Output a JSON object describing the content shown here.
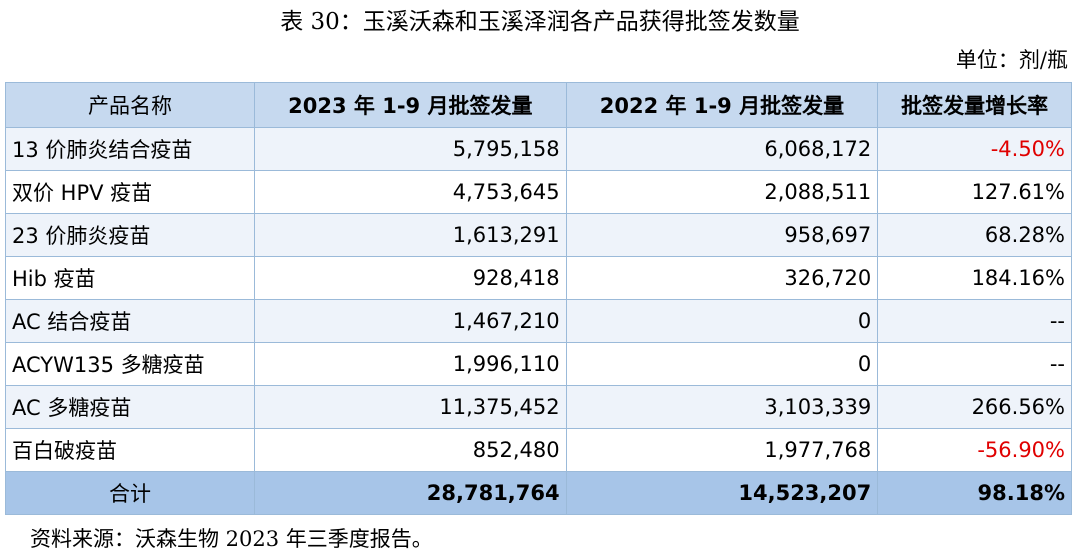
{
  "header": {
    "title": "表 30：玉溪沃森和玉溪泽润各产品获得批签发数量",
    "unit": "单位：剂/瓶"
  },
  "table": {
    "columns": [
      "产品名称",
      "2023 年 1-9 月批签发量",
      "2022 年 1-9 月批签发量",
      "批签发量增长率"
    ],
    "rows": [
      [
        "13 价肺炎结合疫苗",
        "5,795,158",
        "6,068,172",
        "-4.50%"
      ],
      [
        "双价 HPV 疫苗",
        "4,753,645",
        "2,088,511",
        "127.61%"
      ],
      [
        "23 价肺炎疫苗",
        "1,613,291",
        "958,697",
        "68.28%"
      ],
      [
        "Hib 疫苗",
        "928,418",
        "326,720",
        "184.16%"
      ],
      [
        "AC 结合疫苗",
        "1,467,210",
        "0",
        "--"
      ],
      [
        "ACYW135 多糖疫苗",
        "1,996,110",
        "0",
        "--"
      ],
      [
        "AC 多糖疫苗",
        "11,375,452",
        "3,103,339",
        "266.56%"
      ],
      [
        "百白破疫苗",
        "852,480",
        "1,977,768",
        "-56.90%"
      ]
    ],
    "total": [
      "合计",
      "28,781,764",
      "14,523,207",
      "98.18%"
    ]
  },
  "footer": {
    "source": "资料来源：沃森生物 2023 年三季度报告。"
  }
}
